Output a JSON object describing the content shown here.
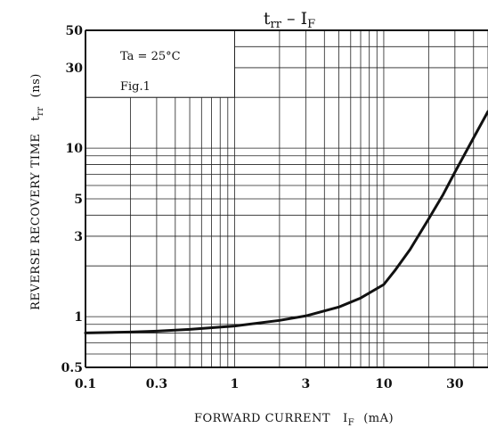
{
  "chart_data": {
    "type": "line",
    "title": {
      "main": "t",
      "main_sub": "rr",
      "sep": " – ",
      "var": "I",
      "var_sub": "F"
    },
    "annotation": {
      "condition": "Ta = 25°C",
      "figure": "Fig.1"
    },
    "xlabel": {
      "text": "FORWARD CURRENT",
      "symbol": "I",
      "symbol_sub": "F",
      "unit": "(mA)"
    },
    "ylabel": {
      "text": "REVERSE RECOVERY TIME",
      "symbol": "t",
      "symbol_sub": "rr",
      "unit": "(ns)"
    },
    "x_scale": "log",
    "y_scale": "log",
    "xlim": [
      0.1,
      50
    ],
    "ylim": [
      0.5,
      50
    ],
    "x_ticks": [
      0.1,
      0.3,
      1,
      3,
      10,
      30
    ],
    "x_tick_labels": [
      "0.1",
      "0.3",
      "1",
      "3",
      "10",
      "30"
    ],
    "y_ticks": [
      0.5,
      1,
      3,
      5,
      10,
      30,
      50
    ],
    "y_tick_labels": [
      "0.5",
      "1",
      "3",
      "5",
      "10",
      "30",
      "50"
    ],
    "grid": true,
    "series": [
      {
        "x": [
          0.1,
          0.2,
          0.3,
          0.5,
          1,
          2,
          3,
          5,
          7,
          10,
          12,
          15,
          20,
          25,
          30,
          40,
          50
        ],
        "y": [
          0.8,
          0.81,
          0.82,
          0.84,
          0.88,
          0.95,
          1.01,
          1.14,
          1.29,
          1.55,
          1.9,
          2.5,
          3.8,
          5.3,
          7.2,
          11.5,
          16.5
        ]
      }
    ]
  }
}
